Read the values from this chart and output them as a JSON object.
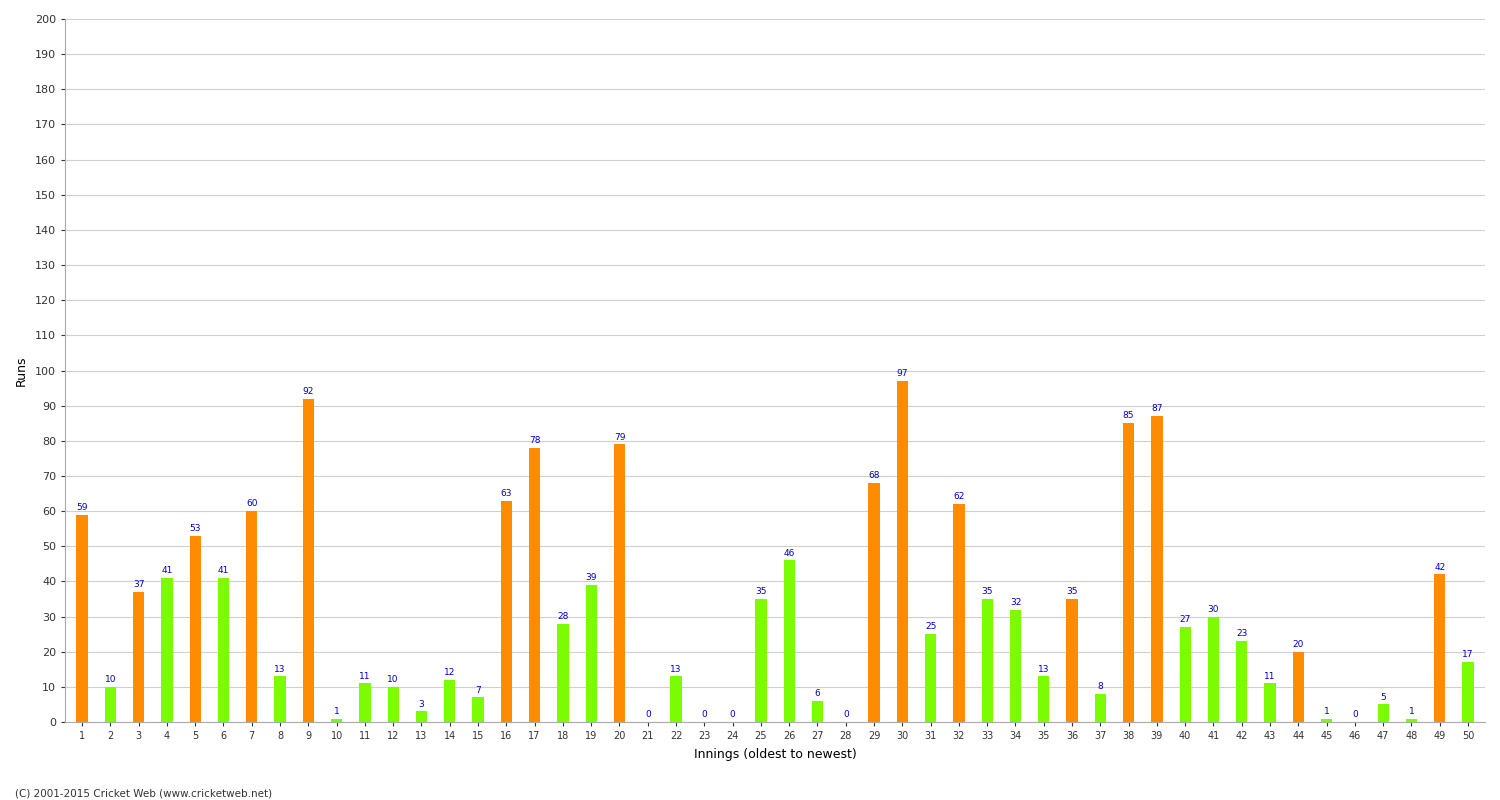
{
  "xlabel": "Innings (oldest to newest)",
  "ylabel": "Runs",
  "ylim": [
    0,
    200
  ],
  "yticks": [
    0,
    10,
    20,
    30,
    40,
    50,
    60,
    70,
    80,
    90,
    100,
    110,
    120,
    130,
    140,
    150,
    160,
    170,
    180,
    190,
    200
  ],
  "innings": [
    1,
    2,
    3,
    4,
    5,
    6,
    7,
    8,
    9,
    10,
    11,
    12,
    13,
    14,
    15,
    16,
    17,
    18,
    19,
    20,
    21,
    22,
    23,
    24,
    25,
    26,
    27,
    28,
    29,
    30,
    31,
    32,
    33,
    34,
    35,
    36,
    37,
    38,
    39,
    40,
    41,
    42,
    43,
    44,
    45,
    46,
    47,
    48,
    49,
    50
  ],
  "values": [
    59,
    10,
    37,
    41,
    53,
    41,
    60,
    13,
    92,
    1,
    11,
    10,
    3,
    12,
    7,
    63,
    78,
    28,
    39,
    79,
    0,
    13,
    0,
    0,
    35,
    46,
    6,
    0,
    68,
    97,
    25,
    62,
    35,
    32,
    13,
    35,
    8,
    85,
    87,
    27,
    30,
    23,
    11,
    20,
    1,
    0,
    5,
    1,
    42,
    17
  ],
  "colors": [
    "#ff8c00",
    "#7cfc00",
    "#ff8c00",
    "#7cfc00",
    "#ff8c00",
    "#7cfc00",
    "#ff8c00",
    "#7cfc00",
    "#ff8c00",
    "#7cfc00",
    "#7cfc00",
    "#7cfc00",
    "#7cfc00",
    "#7cfc00",
    "#7cfc00",
    "#ff8c00",
    "#ff8c00",
    "#7cfc00",
    "#7cfc00",
    "#ff8c00",
    "#7cfc00",
    "#7cfc00",
    "#ff8c00",
    "#7cfc00",
    "#7cfc00",
    "#7cfc00",
    "#7cfc00",
    "#ff8c00",
    "#ff8c00",
    "#ff8c00",
    "#7cfc00",
    "#ff8c00",
    "#7cfc00",
    "#7cfc00",
    "#7cfc00",
    "#ff8c00",
    "#7cfc00",
    "#ff8c00",
    "#ff8c00",
    "#7cfc00",
    "#7cfc00",
    "#7cfc00",
    "#7cfc00",
    "#ff8c00",
    "#7cfc00",
    "#ff8c00",
    "#7cfc00",
    "#7cfc00",
    "#ff8c00",
    "#7cfc00"
  ],
  "background_color": "#ffffff",
  "grid_color": "#d0d0d0",
  "label_color": "#0000cc",
  "bar_width": 0.4,
  "figure_width": 15.0,
  "figure_height": 8.0,
  "footnote": "(C) 2001-2015 Cricket Web (www.cricketweb.net)"
}
